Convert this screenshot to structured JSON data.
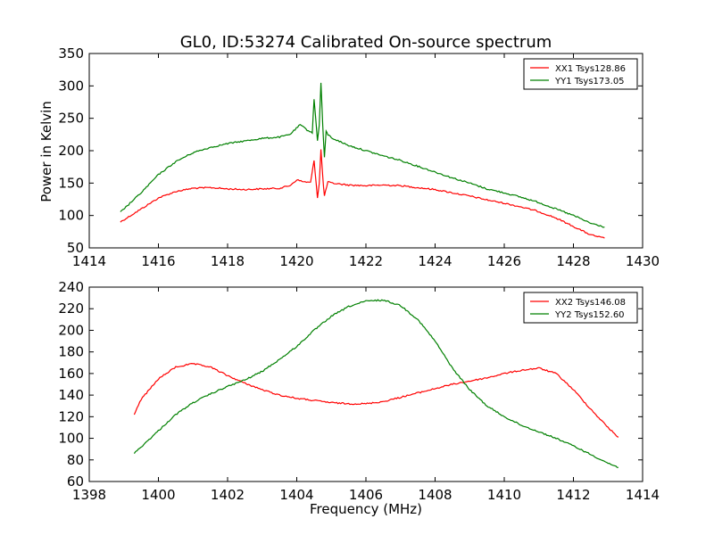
{
  "figure": {
    "title": "GL0, ID:53274 Calibrated On-source spectrum",
    "xlabel": "Frequency (MHz)",
    "ylabel_top": "Power in Kelvin"
  },
  "colors": {
    "red": "#ff0000",
    "green": "#008000"
  },
  "chart_data": [
    {
      "type": "line",
      "title": "GL0, ID:53274 Calibrated On-source spectrum",
      "xlabel": "",
      "ylabel": "Power in Kelvin",
      "xlim": [
        1414,
        1430
      ],
      "ylim": [
        50,
        350
      ],
      "xticks": [
        1414,
        1416,
        1418,
        1420,
        1422,
        1424,
        1426,
        1428,
        1430
      ],
      "yticks": [
        50,
        100,
        150,
        200,
        250,
        300,
        350
      ],
      "legend": "top-right",
      "series": [
        {
          "name": "XX1 Tsys128.86",
          "color": "#ff0000",
          "x": [
            1414.9,
            1415.5,
            1416.0,
            1416.5,
            1417.0,
            1417.5,
            1418.0,
            1418.5,
            1419.0,
            1419.5,
            1419.8,
            1420.0,
            1420.2,
            1420.4,
            1420.5,
            1420.6,
            1420.65,
            1420.7,
            1420.75,
            1420.8,
            1420.9,
            1421.0,
            1421.5,
            1422.0,
            1422.5,
            1423.0,
            1423.5,
            1424.0,
            1424.5,
            1425.0,
            1425.5,
            1426.0,
            1426.5,
            1427.0,
            1427.5,
            1428.0,
            1428.5,
            1428.9
          ],
          "y": [
            90,
            110,
            127,
            137,
            142,
            143,
            141,
            140,
            141,
            142,
            146,
            155,
            152,
            151,
            185,
            127,
            150,
            202,
            160,
            130,
            152,
            150,
            147,
            146,
            147,
            146,
            143,
            140,
            135,
            130,
            124,
            119,
            113,
            106,
            96,
            83,
            70,
            65
          ]
        },
        {
          "name": "YY1 Tsys173.05",
          "color": "#008000",
          "x": [
            1414.9,
            1415.5,
            1416.0,
            1416.5,
            1417.0,
            1417.5,
            1418.0,
            1418.5,
            1419.0,
            1419.5,
            1419.8,
            1420.1,
            1420.3,
            1420.45,
            1420.5,
            1420.6,
            1420.65,
            1420.7,
            1420.75,
            1420.8,
            1420.85,
            1420.9,
            1421.0,
            1421.5,
            1422.0,
            1422.5,
            1423.0,
            1423.5,
            1424.0,
            1424.5,
            1425.0,
            1425.5,
            1426.0,
            1426.5,
            1427.0,
            1427.5,
            1428.0,
            1428.5,
            1428.9
          ],
          "y": [
            105,
            135,
            163,
            183,
            197,
            205,
            211,
            215,
            219,
            221,
            225,
            240,
            232,
            228,
            280,
            215,
            240,
            305,
            240,
            190,
            230,
            225,
            220,
            208,
            200,
            192,
            185,
            176,
            167,
            158,
            150,
            141,
            135,
            128,
            120,
            110,
            100,
            88,
            82
          ]
        }
      ]
    },
    {
      "type": "line",
      "title": "",
      "xlabel": "Frequency (MHz)",
      "ylabel": "",
      "xlim": [
        1398,
        1414
      ],
      "ylim": [
        60,
        240
      ],
      "xticks": [
        1398,
        1400,
        1402,
        1404,
        1406,
        1408,
        1410,
        1412,
        1414
      ],
      "yticks": [
        60,
        80,
        100,
        120,
        140,
        160,
        180,
        200,
        220,
        240
      ],
      "legend": "top-right",
      "series": [
        {
          "name": "XX2 Tsys146.08",
          "color": "#ff0000",
          "x": [
            1399.3,
            1399.5,
            1400.0,
            1400.5,
            1401.0,
            1401.5,
            1402.0,
            1402.5,
            1403.0,
            1403.5,
            1404.0,
            1404.5,
            1405.0,
            1405.5,
            1406.0,
            1406.5,
            1407.0,
            1407.5,
            1408.0,
            1408.5,
            1409.0,
            1409.5,
            1410.0,
            1410.5,
            1411.0,
            1411.5,
            1412.0,
            1412.5,
            1413.0,
            1413.3
          ],
          "y": [
            122,
            136,
            155,
            166,
            169,
            166,
            158,
            151,
            145,
            140,
            137,
            135,
            133,
            132,
            132,
            134,
            138,
            142,
            146,
            150,
            153,
            156,
            160,
            163,
            165,
            160,
            145,
            127,
            110,
            101
          ]
        },
        {
          "name": "YY2 Tsys152.60",
          "color": "#008000",
          "x": [
            1399.3,
            1399.5,
            1400.0,
            1400.5,
            1401.0,
            1401.5,
            1402.0,
            1402.5,
            1403.0,
            1403.5,
            1404.0,
            1404.5,
            1405.0,
            1405.5,
            1406.0,
            1406.5,
            1407.0,
            1407.5,
            1408.0,
            1408.5,
            1409.0,
            1409.5,
            1410.0,
            1410.5,
            1411.0,
            1411.5,
            1412.0,
            1412.5,
            1413.0,
            1413.3
          ],
          "y": [
            86,
            92,
            107,
            122,
            133,
            141,
            148,
            154,
            162,
            173,
            185,
            200,
            213,
            222,
            227,
            228,
            223,
            210,
            190,
            165,
            145,
            130,
            120,
            112,
            106,
            100,
            93,
            85,
            77,
            73
          ]
        }
      ]
    }
  ]
}
